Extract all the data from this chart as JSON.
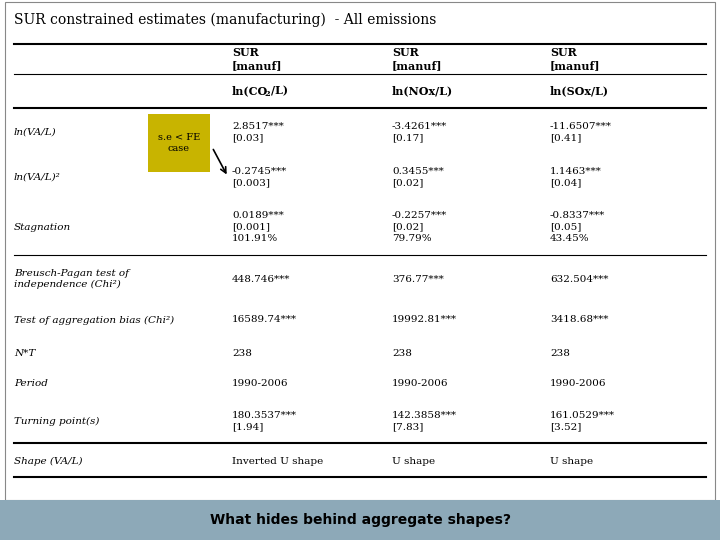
{
  "title": "SUR constrained estimates (manufacturing)  - All emissions",
  "footer": "What hides behind aggregate shapes?",
  "footer_bg": "#8da9b8",
  "annotation_text": "s.e < FE\ncase",
  "annotation_bg": "#c8b400",
  "bg_color": "#ffffff",
  "header1": [
    "SUR\n[manuf]",
    "SUR\n[manuf]",
    "SUR\n[manuf]"
  ],
  "header2_co2": [
    "ln(CO",
    "2",
    "/L)"
  ],
  "header2_rest": [
    "ln(NOx/L)",
    "ln(SOx/L)"
  ],
  "row_labels": [
    "ln(VA/L)",
    "ln(VA/L)²",
    "Stagnation",
    "Breusch-Pagan test of\nindependence (Chi²)",
    "Test of aggregation bias (Chi²)",
    "N*T",
    "Period",
    "Turning point(s)",
    "Shape (VA/L)"
  ],
  "col1": [
    "2.8517***\n[0.03]",
    "-0.2745***\n[0.003]",
    "0.0189***\n[0.001]\n101.91%",
    "448.746***",
    "16589.74***",
    "238",
    "1990-2006",
    "180.3537***\n[1.94]",
    "Inverted U shape"
  ],
  "col2": [
    "-3.4261***\n[0.17]",
    "0.3455***\n[0.02]",
    "-0.2257***\n[0.02]\n79.79%",
    "376.77***",
    "19992.81***",
    "238",
    "1990-2006",
    "142.3858***\n[7.83]",
    "U shape"
  ],
  "col3": [
    "-11.6507***\n[0.41]",
    "1.1463***\n[0.04]",
    "-0.8337***\n[0.05]\n43.45%",
    "632.504***",
    "3418.68***",
    "238",
    "1990-2006",
    "161.0529***\n[3.52]",
    "U shape"
  ]
}
